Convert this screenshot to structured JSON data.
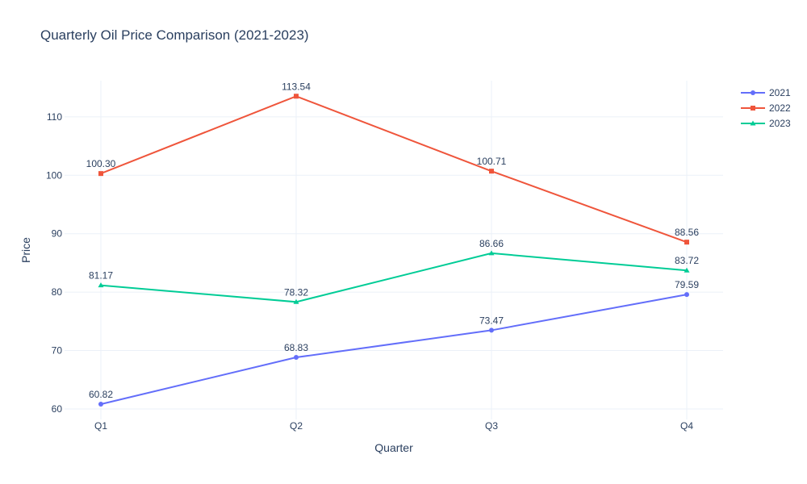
{
  "chart_data": {
    "type": "line",
    "title": "Quarterly Oil Price Comparison (2021-2023)",
    "xlabel": "Quarter",
    "ylabel": "Price",
    "categories": [
      "Q1",
      "Q2",
      "Q3",
      "Q4"
    ],
    "ylim": [
      58.2,
      116.2
    ],
    "yticks": [
      60,
      70,
      80,
      90,
      100,
      110
    ],
    "grid": true,
    "legend_position": "top-right",
    "series": [
      {
        "name": "2021",
        "values": [
          60.82,
          68.83,
          73.47,
          79.59
        ],
        "labels": [
          "60.82",
          "68.83",
          "73.47",
          "79.59"
        ],
        "color": "#636efa",
        "marker": "circle"
      },
      {
        "name": "2022",
        "values": [
          100.3,
          113.54,
          100.71,
          88.56
        ],
        "labels": [
          "100.30",
          "113.54",
          "100.71",
          "88.56"
        ],
        "color": "#ef553b",
        "marker": "square"
      },
      {
        "name": "2023",
        "values": [
          81.17,
          78.32,
          86.66,
          83.72
        ],
        "labels": [
          "81.17",
          "78.32",
          "86.66",
          "83.72"
        ],
        "color": "#00cc96",
        "marker": "triangle-up"
      }
    ]
  }
}
